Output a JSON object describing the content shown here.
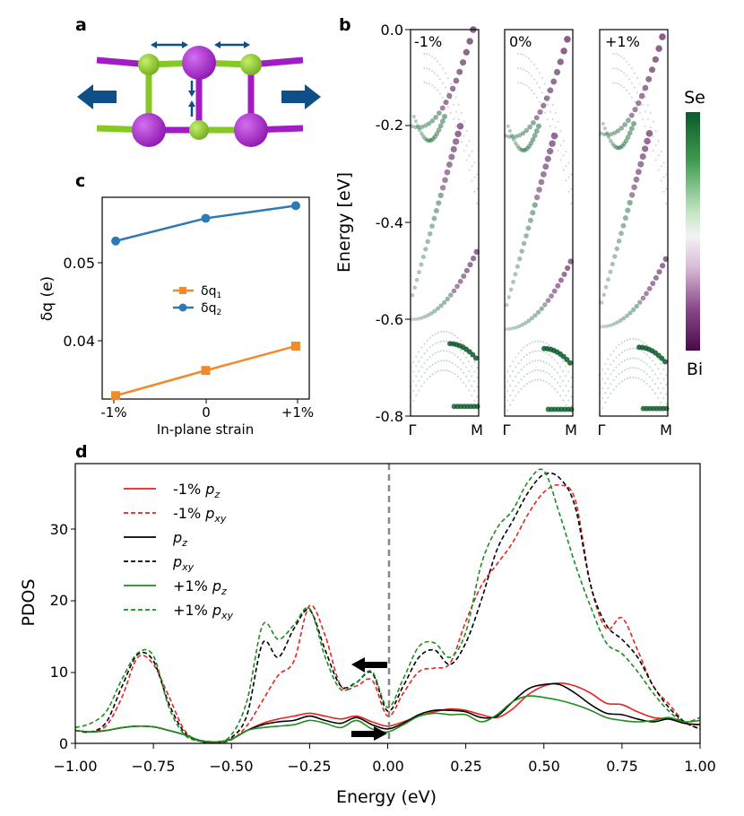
{
  "colors": {
    "se_color": "#0b5a2a",
    "bi_color": "#4a0a4a",
    "pz_neg": "#e8231e",
    "pz_zero": "#000000",
    "pz_pos": "#1e8c1e",
    "q1_color": "#f28a2a",
    "q2_color": "#2e7ab8",
    "arrow_color": "#0d4f86",
    "bi_atom": "#a21cc6",
    "se_atom": "#86c926"
  },
  "panels": {
    "a": {
      "label": "a"
    },
    "b": {
      "label": "b",
      "ylabel": "Energy [eV]",
      "yticks": [
        "0.0",
        "-0.2",
        "-0.4",
        "-0.6",
        "-0.8"
      ],
      "subpanels": [
        {
          "title": "-1%",
          "k_left": "Γ",
          "k_right": "M"
        },
        {
          "title": "0%",
          "k_left": "Γ",
          "k_right": "M"
        },
        {
          "title": "+1%",
          "k_left": "Γ",
          "k_right": "M"
        }
      ],
      "colorbar": {
        "top": "Se",
        "bottom": "Bi"
      }
    },
    "c": {
      "label": "c",
      "xlabel": "In-plane strain",
      "ylabel": "δq (e)",
      "xticks": [
        "-1%",
        "0",
        "+1%"
      ],
      "yticks": [
        "0.04",
        "0.05"
      ],
      "legend": {
        "q1_main": "δq",
        "q1_sub": "1",
        "q2_main": "δq",
        "q2_sub": "2"
      }
    },
    "d": {
      "label": "d",
      "xlabel": "Energy (eV)",
      "ylabel": "PDOS",
      "xticks": [
        "−1.00",
        "−0.75",
        "−0.50",
        "−0.25",
        "0.00",
        "0.25",
        "0.50",
        "0.75",
        "1.00"
      ],
      "yticks": [
        "0",
        "10",
        "20",
        "30"
      ],
      "legend": [
        {
          "pre": "-1% ",
          "p": "p",
          "sub": "z",
          "color": "#e8231e",
          "dash": false
        },
        {
          "pre": "-1% ",
          "p": "p",
          "sub": "xy",
          "color": "#e8231e",
          "dash": true
        },
        {
          "pre": "",
          "p": "p",
          "sub": "z",
          "color": "#000000",
          "dash": false
        },
        {
          "pre": "",
          "p": "p",
          "sub": "xy",
          "color": "#000000",
          "dash": true
        },
        {
          "pre": "+1% ",
          "p": "p",
          "sub": "z",
          "color": "#1e8c1e",
          "dash": false
        },
        {
          "pre": "+1% ",
          "p": "p",
          "sub": "xy",
          "color": "#1e8c1e",
          "dash": true
        }
      ]
    }
  },
  "chart_data": [
    {
      "type": "line",
      "panel": "c",
      "xlabel": "In-plane strain",
      "ylabel": "δq (e)",
      "categories": [
        "-1%",
        "0",
        "+1%"
      ],
      "x": [
        -1,
        0,
        1
      ],
      "xlim": [
        -1.15,
        1.15
      ],
      "ylim": [
        0.0335,
        0.0575
      ],
      "series": [
        {
          "name": "δq1",
          "values": [
            0.0339,
            0.0369,
            0.0398
          ]
        },
        {
          "name": "δq2",
          "values": [
            0.0523,
            0.055,
            0.0565
          ]
        }
      ],
      "legend_position": "center"
    },
    {
      "type": "line",
      "panel": "d",
      "xlabel": "Energy (eV)",
      "ylabel": "PDOS",
      "xlim": [
        -1.0,
        1.0
      ],
      "ylim": [
        0,
        39
      ],
      "grid": false,
      "legend_position": "top-left",
      "fermi_line_x": 0.0,
      "series": [
        {
          "name": "-1% pz",
          "x": [
            -1,
            -0.95,
            -0.9,
            -0.85,
            -0.8,
            -0.75,
            -0.7,
            -0.65,
            -0.6,
            -0.55,
            -0.5,
            -0.45,
            -0.4,
            -0.35,
            -0.3,
            -0.25,
            -0.2,
            -0.15,
            -0.1,
            -0.05,
            0,
            0.05,
            0.1,
            0.15,
            0.2,
            0.25,
            0.3,
            0.35,
            0.4,
            0.45,
            0.5,
            0.55,
            0.6,
            0.65,
            0.7,
            0.75,
            0.8,
            0.85,
            0.9,
            0.95,
            1.0
          ],
          "values": [
            1.8,
            1.6,
            1.8,
            2.2,
            2.4,
            2.3,
            1.8,
            1.2,
            0.4,
            0.2,
            0.6,
            1.8,
            2.8,
            3.4,
            3.8,
            4.2,
            3.8,
            3.4,
            3.8,
            3.0,
            2.4,
            3.0,
            3.8,
            4.4,
            4.8,
            4.6,
            4.0,
            3.6,
            4.8,
            6.8,
            8.0,
            8.4,
            8.0,
            7.0,
            5.6,
            5.4,
            4.4,
            3.6,
            3.4,
            2.8,
            2.6
          ]
        },
        {
          "name": "-1% pxy",
          "x": [
            -1,
            -0.95,
            -0.9,
            -0.85,
            -0.8,
            -0.75,
            -0.7,
            -0.65,
            -0.6,
            -0.55,
            -0.5,
            -0.45,
            -0.4,
            -0.35,
            -0.3,
            -0.25,
            -0.2,
            -0.15,
            -0.1,
            -0.05,
            0,
            0.05,
            0.1,
            0.15,
            0.2,
            0.25,
            0.3,
            0.35,
            0.4,
            0.45,
            0.5,
            0.55,
            0.6,
            0.65,
            0.7,
            0.75,
            0.8,
            0.85,
            0.9,
            0.95,
            1.0
          ],
          "values": [
            1.8,
            1.6,
            2.5,
            6.5,
            12.0,
            11.0,
            6.5,
            1.8,
            0.3,
            0.1,
            0.5,
            2.5,
            6.0,
            9.5,
            11.5,
            19.2,
            15.0,
            8.0,
            8.0,
            8.8,
            3.8,
            7.0,
            10.0,
            10.5,
            11.2,
            17.0,
            22.0,
            25.0,
            28.0,
            32.0,
            35.0,
            36.0,
            34.0,
            22.0,
            16.0,
            17.5,
            13.0,
            8.0,
            5.5,
            3.0,
            2.0
          ]
        },
        {
          "name": "pz",
          "x": [
            -1,
            -0.95,
            -0.9,
            -0.85,
            -0.8,
            -0.75,
            -0.7,
            -0.65,
            -0.6,
            -0.55,
            -0.5,
            -0.45,
            -0.4,
            -0.35,
            -0.3,
            -0.25,
            -0.2,
            -0.15,
            -0.1,
            -0.05,
            0,
            0.05,
            0.1,
            0.15,
            0.2,
            0.25,
            0.3,
            0.35,
            0.4,
            0.45,
            0.5,
            0.55,
            0.6,
            0.65,
            0.7,
            0.75,
            0.8,
            0.85,
            0.9,
            0.95,
            1.0
          ],
          "values": [
            1.8,
            1.6,
            1.8,
            2.2,
            2.4,
            2.3,
            1.8,
            1.2,
            0.4,
            0.2,
            0.6,
            1.8,
            2.6,
            3.0,
            3.2,
            3.8,
            3.2,
            2.8,
            3.6,
            2.6,
            2.0,
            2.8,
            4.0,
            4.6,
            4.6,
            4.4,
            3.6,
            3.8,
            5.8,
            7.6,
            8.2,
            8.2,
            7.0,
            5.4,
            4.2,
            4.0,
            3.4,
            3.0,
            3.4,
            2.8,
            2.6
          ]
        },
        {
          "name": "pxy",
          "x": [
            -1,
            -0.95,
            -0.9,
            -0.85,
            -0.8,
            -0.75,
            -0.7,
            -0.65,
            -0.6,
            -0.55,
            -0.5,
            -0.45,
            -0.4,
            -0.35,
            -0.3,
            -0.25,
            -0.2,
            -0.15,
            -0.1,
            -0.05,
            0,
            0.05,
            0.1,
            0.15,
            0.2,
            0.25,
            0.3,
            0.35,
            0.4,
            0.45,
            0.5,
            0.55,
            0.6,
            0.65,
            0.7,
            0.75,
            0.8,
            0.85,
            0.9,
            0.95,
            1.0
          ],
          "values": [
            1.8,
            1.6,
            3.0,
            8.0,
            12.4,
            11.5,
            5.5,
            1.5,
            0.3,
            0.1,
            0.8,
            4.0,
            14.0,
            12.0,
            16.0,
            18.6,
            13.0,
            8.0,
            8.5,
            9.8,
            4.5,
            8.0,
            12.0,
            13.0,
            11.0,
            14.0,
            20.0,
            27.0,
            31.0,
            35.0,
            37.5,
            37.0,
            33.0,
            22.0,
            16.5,
            14.5,
            12.0,
            8.0,
            5.0,
            3.0,
            2.0
          ]
        },
        {
          "name": "+1% pz",
          "x": [
            -1,
            -0.95,
            -0.9,
            -0.85,
            -0.8,
            -0.75,
            -0.7,
            -0.65,
            -0.6,
            -0.55,
            -0.5,
            -0.45,
            -0.4,
            -0.35,
            -0.3,
            -0.25,
            -0.2,
            -0.15,
            -0.1,
            -0.05,
            0,
            0.05,
            0.1,
            0.15,
            0.2,
            0.25,
            0.3,
            0.35,
            0.4,
            0.45,
            0.5,
            0.55,
            0.6,
            0.65,
            0.7,
            0.75,
            0.8,
            0.85,
            0.9,
            0.95,
            1.0
          ],
          "values": [
            1.8,
            1.6,
            1.8,
            2.2,
            2.4,
            2.3,
            1.8,
            1.2,
            0.4,
            0.2,
            0.6,
            1.8,
            2.2,
            2.4,
            2.6,
            3.2,
            2.8,
            2.2,
            3.2,
            2.0,
            1.6,
            2.6,
            3.8,
            4.2,
            4.0,
            4.0,
            3.0,
            4.0,
            5.8,
            6.6,
            6.4,
            6.0,
            5.4,
            4.6,
            3.6,
            3.2,
            3.0,
            3.2,
            3.6,
            3.0,
            3.2
          ]
        },
        {
          "name": "+1% pxy",
          "x": [
            -1,
            -0.95,
            -0.9,
            -0.85,
            -0.8,
            -0.75,
            -0.7,
            -0.65,
            -0.6,
            -0.55,
            -0.5,
            -0.45,
            -0.4,
            -0.35,
            -0.3,
            -0.25,
            -0.2,
            -0.15,
            -0.1,
            -0.05,
            0,
            0.05,
            0.1,
            0.15,
            0.2,
            0.25,
            0.3,
            0.35,
            0.4,
            0.45,
            0.5,
            0.55,
            0.6,
            0.65,
            0.7,
            0.75,
            0.8,
            0.85,
            0.9,
            0.95,
            1.0
          ],
          "values": [
            2.2,
            2.8,
            4.5,
            9.0,
            12.6,
            12.2,
            5.0,
            1.2,
            0.3,
            0.1,
            1.2,
            6.0,
            16.5,
            14.5,
            16.5,
            18.8,
            12.0,
            7.5,
            8.5,
            10.0,
            5.0,
            9.0,
            13.5,
            14.0,
            12.0,
            15.5,
            25.0,
            30.0,
            32.5,
            36.5,
            38.0,
            32.0,
            25.0,
            19.0,
            14.0,
            12.5,
            10.0,
            7.0,
            4.5,
            3.0,
            3.6
          ]
        }
      ]
    }
  ]
}
